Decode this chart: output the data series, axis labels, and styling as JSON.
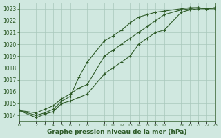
{
  "bg_color": "#d0e8e0",
  "grid_color": "#a8c8bc",
  "line_color": "#2d5a27",
  "xlabel": "Graphe pression niveau de la mer (hPa)",
  "ylim": [
    1013.5,
    1023.5
  ],
  "xlim": [
    0,
    23
  ],
  "yticks": [
    1014,
    1015,
    1016,
    1017,
    1018,
    1019,
    1020,
    1021,
    1022,
    1023
  ],
  "xticks": [
    0,
    2,
    3,
    4,
    5,
    6,
    7,
    8,
    10,
    11,
    12,
    13,
    14,
    15,
    16,
    17,
    19,
    20,
    21,
    22,
    23
  ],
  "series1_x": [
    0,
    2,
    3,
    4,
    5,
    6,
    7,
    8,
    10,
    11,
    12,
    13,
    14,
    15,
    16,
    17,
    19,
    20,
    21,
    22,
    23
  ],
  "series1_y": [
    1014.4,
    1013.8,
    1014.1,
    1014.3,
    1015.0,
    1015.2,
    1015.5,
    1015.8,
    1017.5,
    1018.0,
    1018.5,
    1019.0,
    1020.0,
    1020.5,
    1021.0,
    1021.2,
    1022.7,
    1022.9,
    1023.0,
    1023.0,
    1023.0
  ],
  "series2_x": [
    0,
    2,
    3,
    4,
    5,
    6,
    7,
    8,
    10,
    11,
    12,
    13,
    14,
    15,
    16,
    17,
    19,
    20,
    21,
    22,
    23
  ],
  "series2_y": [
    1014.4,
    1014.0,
    1014.2,
    1014.5,
    1015.2,
    1015.6,
    1017.2,
    1018.5,
    1020.3,
    1020.7,
    1021.2,
    1021.8,
    1022.3,
    1022.5,
    1022.7,
    1022.8,
    1023.0,
    1023.1,
    1023.1,
    1023.0,
    1023.1
  ],
  "series3_x": [
    0,
    2,
    3,
    4,
    5,
    6,
    7,
    8,
    10,
    11,
    12,
    13,
    14,
    15,
    16,
    17,
    19,
    20,
    21,
    22,
    23
  ],
  "series3_y": [
    1014.4,
    1014.2,
    1014.5,
    1014.8,
    1015.4,
    1015.8,
    1016.3,
    1016.6,
    1019.0,
    1019.5,
    1020.0,
    1020.5,
    1021.0,
    1021.5,
    1022.0,
    1022.5,
    1022.9,
    1023.0,
    1023.1,
    1023.0,
    1023.1
  ]
}
